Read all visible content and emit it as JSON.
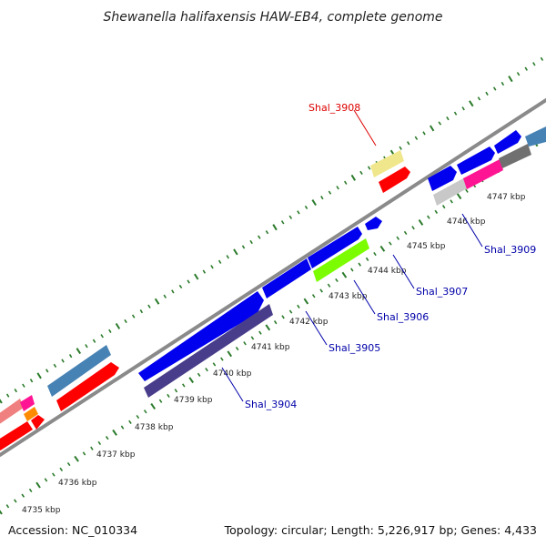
{
  "title": "Shewanella halifaxensis HAW-EB4, complete genome",
  "footer": {
    "accession": "Accession: NC_010334",
    "summary": "Topology: circular; Length: 5,226,917 bp; Genes: 4,433"
  },
  "colors": {
    "backbone": "#888888",
    "tick_marks": "#2a7a2a",
    "label_default": "#0000aa",
    "label_highlight": "#dd0000",
    "gene_blue": "#0000ee",
    "gene_navy": "#4a3f8c",
    "gene_red": "#ff0000",
    "gene_steelblue": "#4682b4",
    "gene_khaki": "#f0e68c",
    "gene_lawngreen": "#7cfc00",
    "gene_pink": "#ff1493",
    "gene_gray": "#707070",
    "gene_silver": "#c8c8c8",
    "gene_salmon": "#f08080",
    "gene_orange": "#ff8c00"
  },
  "ticks": [
    "4735 kbp",
    "4736 kbp",
    "4737 kbp",
    "4738 kbp",
    "4739 kbp",
    "4740 kbp",
    "4741 kbp",
    "4742 kbp",
    "4743 kbp",
    "4744 kbp",
    "4745 kbp",
    "4746 kbp",
    "4747 kbp"
  ],
  "gene_labels": [
    {
      "text": "Shal_3908",
      "highlight": true
    },
    {
      "text": "Shal_3909",
      "highlight": false
    },
    {
      "text": "Shal_3907",
      "highlight": false
    },
    {
      "text": "Shal_3906",
      "highlight": false
    },
    {
      "text": "Shal_3905",
      "highlight": false
    },
    {
      "text": "Shal_3904",
      "highlight": false
    }
  ]
}
